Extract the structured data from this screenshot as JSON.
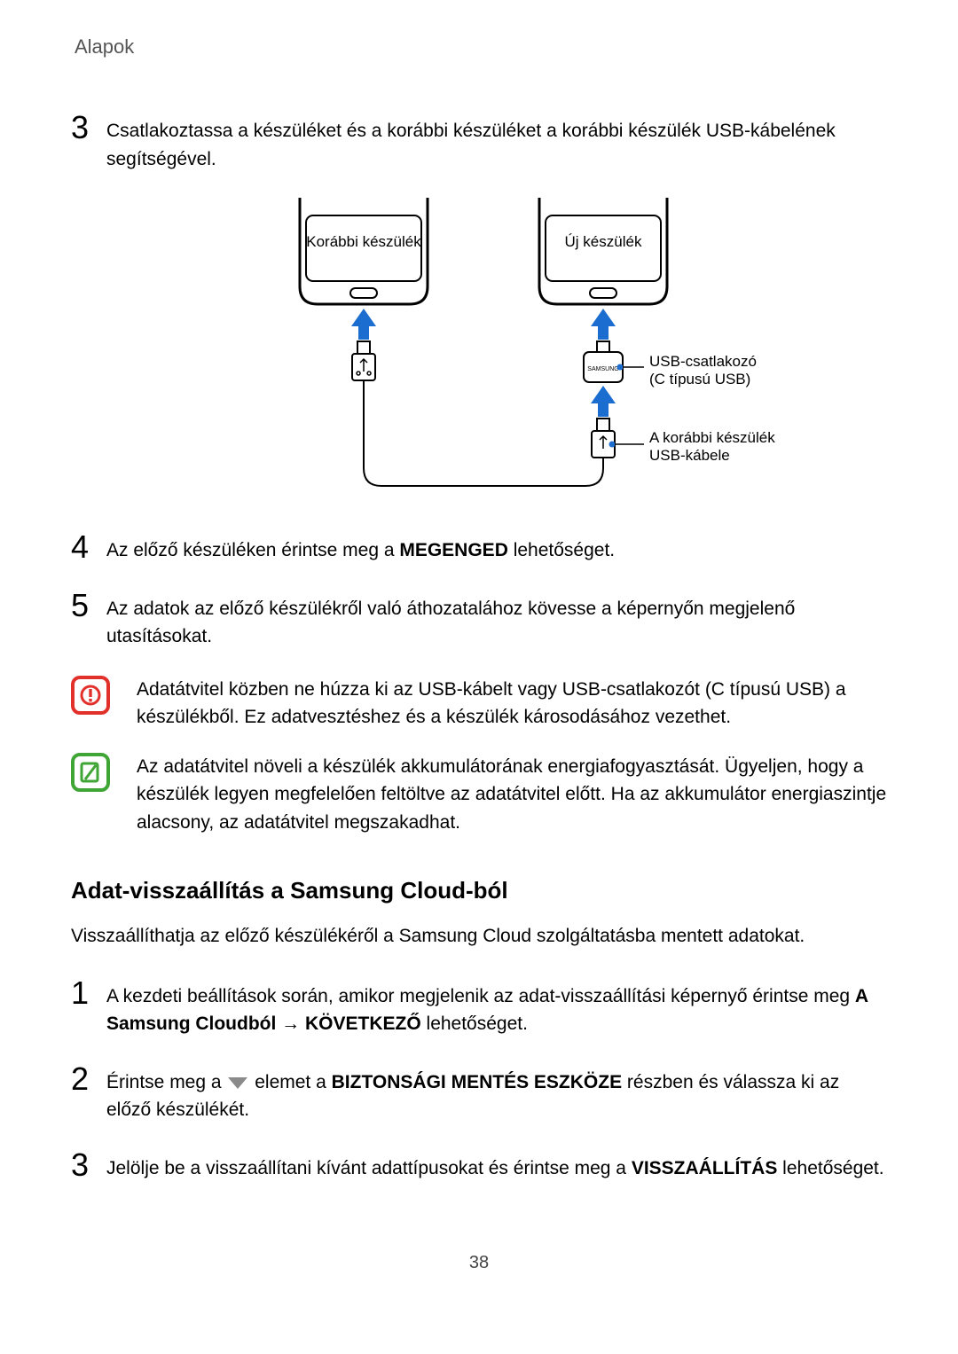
{
  "header": {
    "title": "Alapok"
  },
  "steps_a": [
    {
      "num": "3",
      "parts": [
        {
          "t": "Csatlakoztassa a készüléket és a korábbi készüléket a korábbi készülék USB-kábelének segítségével.",
          "b": false
        }
      ]
    }
  ],
  "diagram": {
    "label_prev": "Korábbi készülék",
    "label_new": "Új készülék",
    "label_connector_1": "USB-csatlakozó",
    "label_connector_2": "(C típusú USB)",
    "label_cable_1": "A korábbi készülék",
    "label_cable_2": "USB-kábele",
    "arrow_color": "#1c6dd0",
    "phone_border": "#000000",
    "phone_fill": "#ffffff",
    "dot_color": "#1c6dd0"
  },
  "steps_b": [
    {
      "num": "4",
      "parts": [
        {
          "t": "Az előző készüléken érintse meg a ",
          "b": false
        },
        {
          "t": "MEGENGED",
          "b": true
        },
        {
          "t": " lehetőséget.",
          "b": false
        }
      ]
    },
    {
      "num": "5",
      "parts": [
        {
          "t": "Az adatok az előző készülékről való áthozatalához kövesse a képernyőn megjelenő utasításokat.",
          "b": false
        }
      ]
    }
  ],
  "notes": [
    {
      "kind": "warning",
      "text": "Adatátvitel közben ne húzza ki az USB-kábelt vagy USB-csatlakozót (C típusú USB) a készülékből. Ez adatvesztéshez és a készülék károsodásához vezethet."
    },
    {
      "kind": "info",
      "text": "Az adatátvitel növeli a készülék akkumulátorának energiafogyasztását. Ügyeljen, hogy a készülék legyen megfelelően feltöltve az adatátvitel előtt. Ha az akkumulátor energiaszintje alacsony, az adatátvitel megszakadhat."
    }
  ],
  "section": {
    "heading": "Adat-visszaállítás a Samsung Cloud-ból",
    "intro": "Visszaállíthatja az előző készülékéről a Samsung Cloud szolgáltatásba mentett adatokat.",
    "steps": [
      {
        "num": "1",
        "parts": [
          {
            "t": "A kezdeti beállítások során, amikor megjelenik az adat-visszaállítási képernyő érintse meg ",
            "b": false
          },
          {
            "t": "A Samsung Cloudból",
            "b": true
          },
          {
            "t": " → ",
            "b": false
          },
          {
            "t": "KÖVETKEZŐ",
            "b": true
          },
          {
            "t": " lehetőséget.",
            "b": false
          }
        ]
      },
      {
        "num": "2",
        "parts": [
          {
            "t": "Érintse meg a ",
            "b": false
          },
          {
            "t": "__DROPDOWN__",
            "b": false
          },
          {
            "t": " elemet a ",
            "b": false
          },
          {
            "t": "BIZTONSÁGI MENTÉS ESZKÖZE",
            "b": true
          },
          {
            "t": " részben és válassza ki az előző készülékét.",
            "b": false
          }
        ]
      },
      {
        "num": "3",
        "parts": [
          {
            "t": "Jelölje be a visszaállítani kívánt adattípusokat és érintse meg a ",
            "b": false
          },
          {
            "t": "VISSZAÁLLÍTÁS",
            "b": true
          },
          {
            "t": " lehetőséget.",
            "b": false
          }
        ]
      }
    ]
  },
  "page_number": "38",
  "colors": {
    "warning_border": "#e2312a",
    "info_border": "#3fa535",
    "dropdown_fill": "#8a8a8a"
  }
}
